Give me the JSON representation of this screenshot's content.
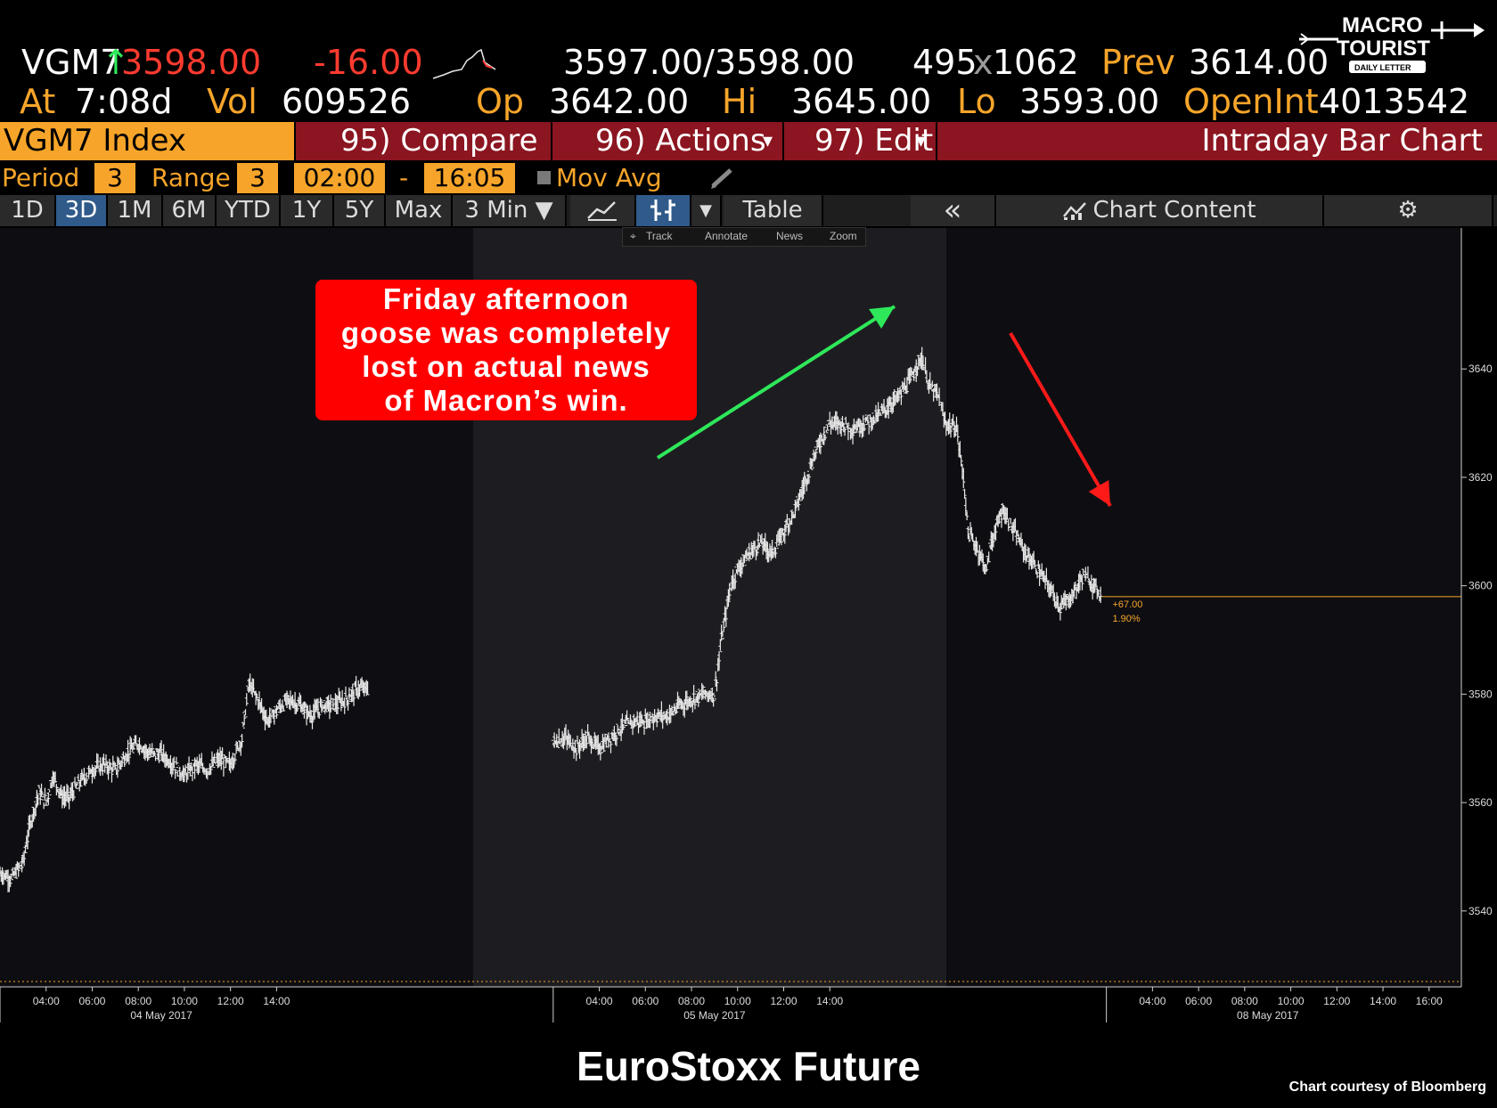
{
  "quote": {
    "symbol": "VGM7",
    "arrow": "↑",
    "last": "3598.00",
    "change": "-16.00",
    "bid_ask": "3597.00/3598.00",
    "size_bid": "495",
    "size_x": "x",
    "size_ask": "1062",
    "prev_label": "Prev",
    "prev": "3614.00",
    "at_label": "At",
    "at_time": "7:08d",
    "vol_label": "Vol",
    "vol": "609526",
    "op_label": "Op",
    "op": "3642.00",
    "hi_label": "Hi",
    "hi": "3645.00",
    "lo_label": "Lo",
    "lo": "3593.00",
    "oi_label": "OpenInt",
    "oi": "4013542"
  },
  "menu": {
    "ticker": "VGM7 Index",
    "compare": "95) Compare",
    "actions": "96) Actions",
    "actions_caret": "▾",
    "edit": "97) Edit",
    "edit_caret": "▾",
    "chart_name": "Intraday Bar Chart"
  },
  "settings": {
    "period_label": "Period",
    "period": "3",
    "range_label": "Range",
    "range": "3",
    "start": "02:00",
    "dash": "-",
    "end": "16:05",
    "mov_avg": "Mov Avg"
  },
  "toolbar": {
    "tabs": [
      "1D",
      "3D",
      "1M",
      "6M",
      "YTD",
      "1Y",
      "5Y",
      "Max"
    ],
    "active_tab": "3D",
    "interval": "3 Min ▼",
    "table": "Table",
    "collapse": "«",
    "chart_content": "Chart Content"
  },
  "tools": {
    "track": "Track",
    "annotate": "Annotate",
    "news": "News",
    "zoom": "Zoom"
  },
  "annotation": {
    "lines": [
      "Friday afternoon",
      "goose was completely",
      "lost on actual news",
      "of Macron’s win."
    ]
  },
  "last_marker": {
    "change": "+67.00",
    "pct": "1.90%"
  },
  "logo": {
    "line1": "MACRO",
    "line2": "TOURIST",
    "line3": "DAILY LETTER"
  },
  "caption": "EuroStoxx Future",
  "credit": "Chart courtesy of Bloomberg",
  "colors": {
    "orange": "#f7a52a",
    "red": "#ff3b2f",
    "title_bar": "#8b1520",
    "up_arrow": "#2ee85a",
    "down_arrow": "#ff1a1a"
  },
  "chart_data": {
    "type": "line",
    "yticks": [
      3540,
      3560,
      3580,
      3600,
      3620,
      3640
    ],
    "ylim": [
      3526,
      3666
    ],
    "xticks": [
      {
        "t": 4,
        "label": "04:00"
      },
      {
        "t": 6,
        "label": "06:00"
      },
      {
        "t": 8,
        "label": "08:00"
      },
      {
        "t": 10,
        "label": "10:00"
      },
      {
        "t": 12,
        "label": "12:00"
      },
      {
        "t": 14,
        "label": "14:00"
      },
      {
        "t": 28,
        "label": "04:00"
      },
      {
        "t": 30,
        "label": "06:00"
      },
      {
        "t": 32,
        "label": "08:00"
      },
      {
        "t": 34,
        "label": "10:00"
      },
      {
        "t": 36,
        "label": "12:00"
      },
      {
        "t": 38,
        "label": "14:00"
      },
      {
        "t": 52,
        "label": "04:00"
      },
      {
        "t": 54,
        "label": "06:00"
      },
      {
        "t": 56,
        "label": "08:00"
      },
      {
        "t": 58,
        "label": "10:00"
      },
      {
        "t": 60,
        "label": "12:00"
      },
      {
        "t": 62,
        "label": "14:00"
      },
      {
        "t": 64,
        "label": "16:00"
      }
    ],
    "dates": [
      {
        "t": 9,
        "label": "04 May 2017"
      },
      {
        "t": 33,
        "label": "05 May 2017"
      },
      {
        "t": 57,
        "label": "08 May 2017"
      }
    ],
    "xlim": [
      2,
      65.4
    ],
    "series": [
      {
        "values": [
          [
            2.0,
            3547
          ],
          [
            2.5,
            3546
          ],
          [
            3.0,
            3549
          ],
          [
            3.3,
            3556
          ],
          [
            3.7,
            3562
          ],
          [
            4.0,
            3560
          ],
          [
            4.3,
            3565
          ],
          [
            4.7,
            3561
          ],
          [
            5.0,
            3561
          ],
          [
            5.5,
            3564
          ],
          [
            6.0,
            3566
          ],
          [
            6.5,
            3567
          ],
          [
            7.0,
            3566
          ],
          [
            7.5,
            3569
          ],
          [
            8.0,
            3571
          ],
          [
            8.5,
            3569
          ],
          [
            9.0,
            3569
          ],
          [
            9.5,
            3567
          ],
          [
            10.0,
            3565
          ],
          [
            10.5,
            3567
          ],
          [
            11.0,
            3566
          ],
          [
            11.5,
            3568
          ],
          [
            12.0,
            3567
          ],
          [
            12.5,
            3572
          ],
          [
            12.8,
            3582
          ],
          [
            13.2,
            3579
          ],
          [
            13.6,
            3575
          ],
          [
            14.0,
            3577
          ],
          [
            14.5,
            3579
          ],
          [
            15.0,
            3578
          ],
          [
            15.5,
            3576
          ],
          [
            16.0,
            3578
          ],
          [
            16.5,
            3578
          ],
          [
            17.0,
            3579
          ],
          [
            17.5,
            3581
          ],
          [
            18.0,
            3581
          ],
          [
            26.0,
            3571
          ],
          [
            26.5,
            3572
          ],
          [
            27.0,
            3570
          ],
          [
            27.5,
            3572
          ],
          [
            28.0,
            3570
          ],
          [
            28.5,
            3572
          ],
          [
            29.0,
            3574
          ],
          [
            29.5,
            3575
          ],
          [
            30.0,
            3575
          ],
          [
            30.5,
            3576
          ],
          [
            31.0,
            3576
          ],
          [
            31.5,
            3578
          ],
          [
            32.0,
            3579
          ],
          [
            32.5,
            3580
          ],
          [
            33.0,
            3580
          ],
          [
            33.3,
            3590
          ],
          [
            33.7,
            3600
          ],
          [
            34.0,
            3603
          ],
          [
            34.5,
            3606
          ],
          [
            35.0,
            3608
          ],
          [
            35.5,
            3606
          ],
          [
            36.0,
            3610
          ],
          [
            36.5,
            3614
          ],
          [
            37.0,
            3620
          ],
          [
            37.5,
            3626
          ],
          [
            38.0,
            3630
          ],
          [
            38.5,
            3630
          ],
          [
            39.0,
            3629
          ],
          [
            39.5,
            3630
          ],
          [
            40.0,
            3631
          ],
          [
            40.5,
            3633
          ],
          [
            41.0,
            3635
          ],
          [
            41.5,
            3638
          ],
          [
            41.8,
            3641
          ],
          [
            42.0,
            3642
          ],
          [
            42.3,
            3637
          ],
          [
            42.7,
            3635
          ],
          [
            43.0,
            3630
          ],
          [
            43.5,
            3629
          ],
          [
            43.8,
            3620
          ],
          [
            44.0,
            3610
          ],
          [
            44.5,
            3606
          ],
          [
            44.8,
            3603
          ],
          [
            45.0,
            3608
          ],
          [
            45.5,
            3614
          ],
          [
            46.0,
            3610
          ],
          [
            46.5,
            3606
          ],
          [
            47.0,
            3603
          ],
          [
            47.5,
            3600
          ],
          [
            48.0,
            3596
          ],
          [
            48.5,
            3598
          ],
          [
            49.0,
            3602
          ],
          [
            49.5,
            3600
          ],
          [
            49.8,
            3598
          ]
        ]
      }
    ]
  }
}
